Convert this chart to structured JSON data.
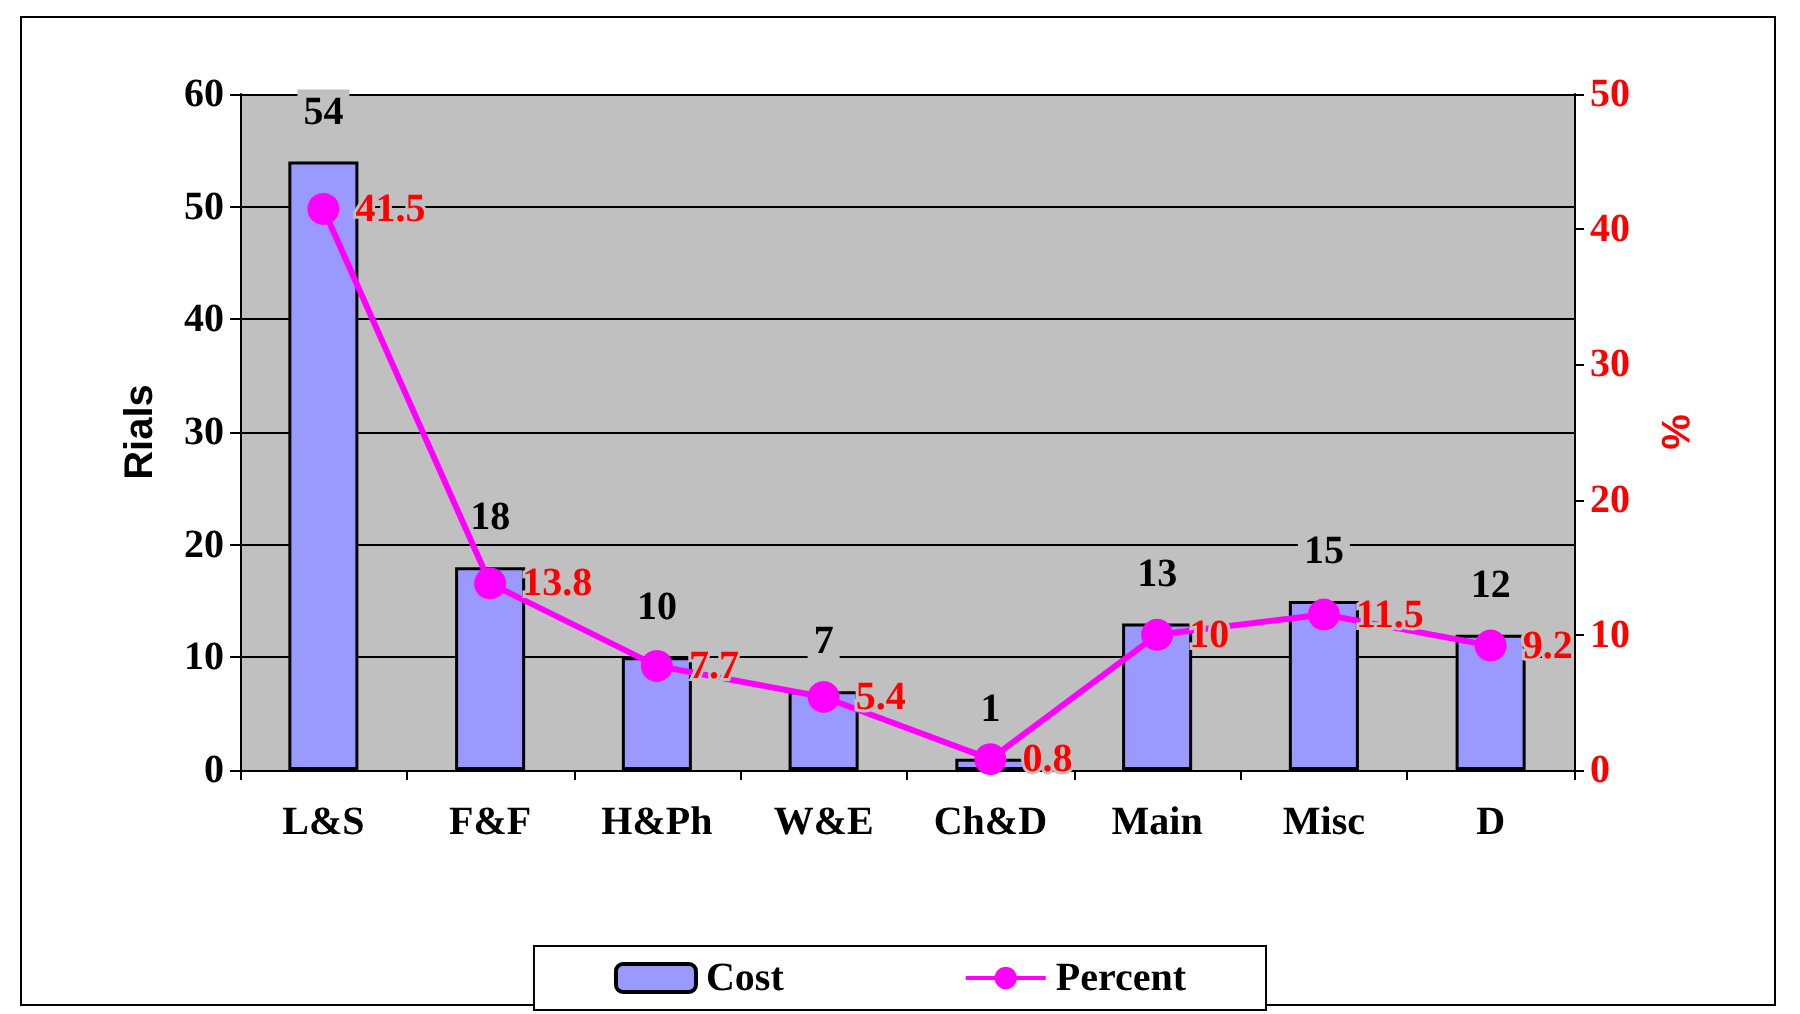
{
  "chart_data": {
    "type": "bar",
    "ylabel": "Rials",
    "y2label": "%",
    "categories": [
      "L&S",
      "F&F",
      "H&Ph",
      "W&E",
      "Ch&D",
      "Main",
      "Misc",
      "D"
    ],
    "series": [
      {
        "name": "Cost",
        "color": "#9999ff",
        "values": [
          54,
          18,
          10,
          7,
          1,
          13,
          15,
          12
        ]
      },
      {
        "name": "Percent",
        "type": "line",
        "axis": "y2",
        "color": "#ff00ff",
        "values": [
          41.5,
          13.8,
          7.7,
          5.4,
          0.8,
          10,
          11.5,
          9.2
        ]
      }
    ],
    "ylim": [
      0,
      60
    ],
    "yticks": [
      0,
      10,
      20,
      30,
      40,
      50,
      60
    ],
    "y2lim": [
      0,
      50
    ],
    "y2ticks": [
      0,
      10,
      20,
      30,
      40,
      50
    ],
    "data_labels": true,
    "grid": "y",
    "legend": "bottom",
    "marker": "circle",
    "line_style": "solid"
  }
}
